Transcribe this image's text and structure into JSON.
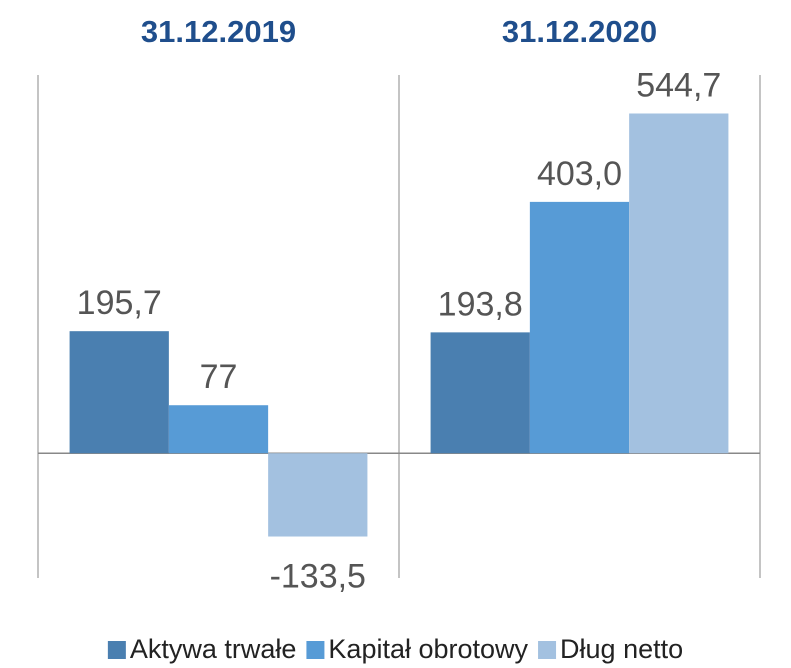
{
  "chart_data": {
    "type": "bar",
    "categories": [
      "31.12.2019",
      "31.12.2020"
    ],
    "series": [
      {
        "name": "Aktywa trwałe",
        "color": "#4a7fb0",
        "values": [
          195.7,
          193.8
        ],
        "value_labels": [
          "195,7",
          "193,8"
        ]
      },
      {
        "name": "Kapitał obrotowy",
        "color": "#579bd6",
        "values": [
          77,
          403.0
        ],
        "value_labels": [
          "77",
          "403,0"
        ]
      },
      {
        "name": "Dług netto",
        "color": "#a3c1e0",
        "values": [
          -133.5,
          544.7
        ],
        "value_labels": [
          "-133,5",
          "544,7"
        ]
      }
    ],
    "ylim": [
      -200,
      600
    ],
    "legend": "bottom"
  }
}
